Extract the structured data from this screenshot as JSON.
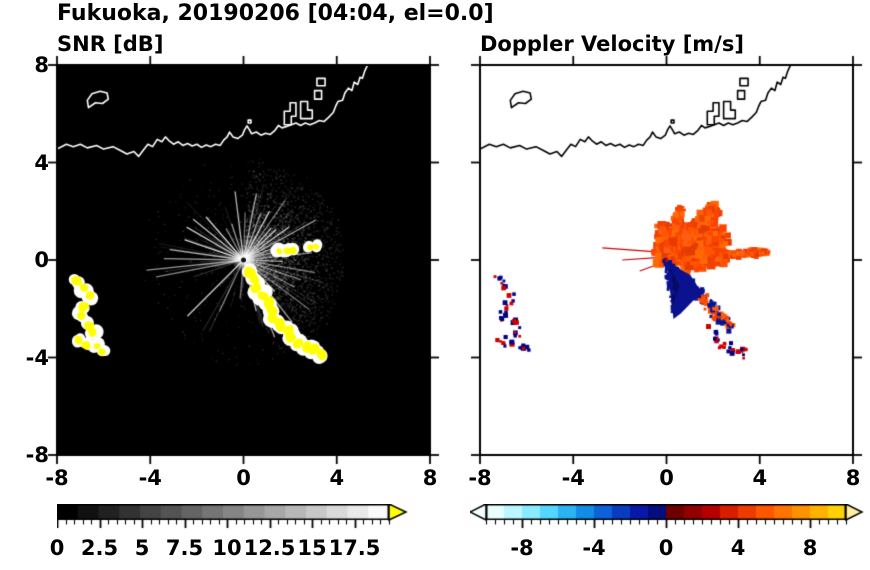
{
  "title": "Fukuoka, 20190206 [04:04, el=0.0]",
  "chart_data": [
    {
      "type": "heatmap",
      "title": "SNR [dB]",
      "xlim": [
        -8,
        8
      ],
      "ylim": [
        -8,
        8
      ],
      "xticks": [
        -8,
        -4,
        0,
        4,
        8
      ],
      "yticks": [
        8,
        4,
        0,
        -4,
        -8
      ],
      "background": "#000000",
      "grid": false,
      "colorbar": {
        "orientation": "horizontal",
        "range": [
          0,
          19.5
        ],
        "ticks": [
          0,
          2.5,
          5,
          7.5,
          10,
          12.5,
          15,
          17.5
        ],
        "colormap": "grayscale",
        "start_color": "#000000",
        "end_color": "#fafafa",
        "over_arrow_color": "#ffff00"
      },
      "features": {
        "radar_center": [
          0,
          0
        ],
        "echo_color": "#c8c8c8",
        "bright_ray_angles": [
          186,
          191,
          179,
          172,
          161,
          150,
          141,
          131,
          119,
          108,
          97,
          88,
          79,
          70,
          62,
          55,
          49,
          43,
          36,
          29,
          22,
          14,
          6,
          -2,
          -10,
          -19,
          -28,
          -37,
          -45,
          -52,
          -60,
          -68,
          -76,
          -95,
          -115,
          -135
        ],
        "blocked_ray_angles": [
          -58,
          -80,
          -100,
          -110,
          210,
          222
        ],
        "clutter_color": "#ffff00",
        "clutter_halo_color": "#ffffff",
        "clutter_chains": [
          {
            "r": 0.18,
            "pts": [
              [
                -7.15,
                -0.85
              ],
              [
                -6.85,
                -1.15
              ],
              [
                -6.6,
                -1.5
              ],
              [
                -6.85,
                -1.9
              ],
              [
                -6.95,
                -2.3
              ],
              [
                -6.6,
                -2.65
              ],
              [
                -6.45,
                -2.95
              ]
            ]
          },
          {
            "r": 0.15,
            "pts": [
              [
                -7.05,
                -3.3
              ],
              [
                -6.75,
                -3.5
              ]
            ]
          },
          {
            "r": 0.13,
            "pts": [
              [
                -6.3,
                -3.55
              ],
              [
                -6.05,
                -3.75
              ]
            ]
          },
          {
            "r": 0.2,
            "pts": [
              [
                0.25,
                -0.5
              ],
              [
                0.5,
                -0.85
              ],
              [
                0.55,
                -1.2
              ],
              [
                0.8,
                -1.45
              ],
              [
                1.05,
                -1.75
              ],
              [
                1.2,
                -2.05
              ],
              [
                1.3,
                -2.4
              ],
              [
                1.6,
                -2.65
              ],
              [
                1.95,
                -2.85
              ],
              [
                2.05,
                -3.2
              ],
              [
                2.35,
                -3.45
              ],
              [
                2.7,
                -3.55
              ],
              [
                3.0,
                -3.65
              ],
              [
                3.3,
                -3.85
              ]
            ]
          },
          {
            "r": 0.14,
            "pts": [
              [
                1.55,
                0.35
              ],
              [
                1.85,
                0.4
              ],
              [
                2.1,
                0.42
              ]
            ]
          },
          {
            "r": 0.12,
            "pts": [
              [
                2.85,
                0.5
              ],
              [
                3.15,
                0.55
              ]
            ]
          }
        ]
      }
    },
    {
      "type": "heatmap",
      "title": "Doppler Velocity [m/s]",
      "xlim": [
        -8,
        8
      ],
      "ylim": [
        -8,
        8
      ],
      "xticks": [
        -8,
        -4,
        0,
        4,
        8
      ],
      "yticks": [
        8,
        4,
        0,
        -4,
        -8
      ],
      "background": "#ffffff",
      "grid": false,
      "colorbar": {
        "orientation": "horizontal",
        "range": [
          -10,
          10
        ],
        "ticks": [
          -8,
          -4,
          0,
          4,
          8
        ],
        "segment_colors": [
          "#eaffff",
          "#bdf6ff",
          "#8ceaff",
          "#55d6ff",
          "#2cb4f2",
          "#128ce4",
          "#0c62d8",
          "#0a3cc2",
          "#0719a6",
          "#040d7c",
          "#6e0000",
          "#920000",
          "#b60000",
          "#d81c00",
          "#ef3a00",
          "#ff5600",
          "#ff7400",
          "#ff9200",
          "#ffb200",
          "#ffd200"
        ],
        "under_arrow_color": "#f2ffff",
        "over_arrow_color": "#fff0a0"
      },
      "features": {
        "plume_center": [
          1.05,
          0.55
        ],
        "plume_colors": [
          "#ff5400",
          "#ff4300",
          "#f04300",
          "#ff6a00",
          "#e63c00",
          "#ff5e14"
        ],
        "streak_color": "#cc0000",
        "streaks": [
          [
            [
              0,
              0.3
            ],
            [
              -2.75,
              0.5
            ]
          ],
          [
            [
              -0.1,
              0.12
            ],
            [
              -1.9,
              0.0
            ]
          ],
          [
            [
              0,
              -0.05
            ],
            [
              -1.15,
              -0.45
            ]
          ]
        ],
        "wedge_color": "#0a128f",
        "wedge_dark": "#060b66",
        "wedge": [
          [
            0.02,
            -0.08
          ],
          [
            0.3,
            -2.42
          ],
          [
            0.62,
            -2.18
          ],
          [
            1.5,
            -1.32
          ],
          [
            1.02,
            -0.62
          ]
        ],
        "wedge_inner": [
          [
            0.05,
            -0.1
          ],
          [
            0.24,
            -2.0
          ],
          [
            0.55,
            -1.05
          ]
        ],
        "fleck_red": "#cc0000",
        "fleck_blue": "#000080"
      }
    }
  ],
  "map": {
    "coastline": [
      [
        -8,
        4.55
      ],
      [
        -7.6,
        4.75
      ],
      [
        -7.3,
        4.65
      ],
      [
        -7.0,
        4.75
      ],
      [
        -6.7,
        4.6
      ],
      [
        -6.3,
        4.7
      ],
      [
        -6.0,
        4.55
      ],
      [
        -5.6,
        4.65
      ],
      [
        -5.3,
        4.5
      ],
      [
        -5.0,
        4.35
      ],
      [
        -4.7,
        4.45
      ],
      [
        -4.5,
        4.25
      ],
      [
        -4.3,
        4.5
      ],
      [
        -4.1,
        4.75
      ],
      [
        -3.9,
        4.65
      ],
      [
        -3.7,
        4.95
      ],
      [
        -3.5,
        4.85
      ],
      [
        -3.35,
        5.05
      ],
      [
        -3.2,
        4.9
      ],
      [
        -3.0,
        4.75
      ],
      [
        -2.8,
        4.85
      ],
      [
        -2.6,
        4.7
      ],
      [
        -2.4,
        4.78
      ],
      [
        -2.2,
        4.68
      ],
      [
        -2.0,
        4.75
      ],
      [
        -1.8,
        4.62
      ],
      [
        -1.6,
        4.72
      ],
      [
        -1.4,
        4.65
      ],
      [
        -1.2,
        4.75
      ],
      [
        -1.0,
        4.7
      ],
      [
        -0.85,
        4.92
      ],
      [
        -0.7,
        5.05
      ],
      [
        -0.6,
        5.25
      ],
      [
        -0.45,
        5.05
      ],
      [
        -0.25,
        4.98
      ],
      [
        -0.05,
        5.12
      ],
      [
        0.05,
        5.35
      ],
      [
        0.15,
        5.5
      ],
      [
        0.25,
        5.35
      ],
      [
        0.35,
        5.18
      ],
      [
        0.55,
        5.25
      ],
      [
        0.75,
        5.12
      ],
      [
        0.95,
        5.2
      ],
      [
        1.15,
        5.15
      ],
      [
        1.35,
        5.32
      ],
      [
        1.5,
        5.52
      ],
      [
        1.65,
        5.42
      ],
      [
        1.85,
        5.48
      ],
      [
        2.05,
        5.55
      ],
      [
        2.25,
        5.62
      ],
      [
        2.45,
        5.52
      ],
      [
        2.65,
        5.62
      ],
      [
        2.85,
        5.55
      ],
      [
        3.05,
        5.62
      ],
      [
        3.25,
        5.72
      ],
      [
        3.45,
        5.68
      ],
      [
        3.65,
        5.85
      ],
      [
        3.85,
        6.05
      ],
      [
        3.95,
        6.3
      ],
      [
        4.05,
        6.5
      ],
      [
        4.25,
        6.55
      ],
      [
        4.35,
        6.85
      ],
      [
        4.5,
        7.05
      ],
      [
        4.65,
        6.95
      ],
      [
        4.75,
        7.3
      ],
      [
        4.9,
        7.2
      ],
      [
        5.0,
        7.5
      ],
      [
        5.1,
        7.45
      ],
      [
        5.2,
        7.75
      ],
      [
        5.3,
        7.95
      ],
      [
        5.35,
        8.1
      ]
    ],
    "island": [
      [
        -6.65,
        6.25
      ],
      [
        -6.35,
        6.45
      ],
      [
        -6.05,
        6.42
      ],
      [
        -5.8,
        6.6
      ],
      [
        -5.85,
        6.85
      ],
      [
        -6.15,
        6.92
      ],
      [
        -6.5,
        6.82
      ],
      [
        -6.7,
        6.55
      ],
      [
        -6.65,
        6.25
      ]
    ],
    "harbor_blocks": [
      [
        [
          1.75,
          5.55
        ],
        [
          1.75,
          6.1
        ],
        [
          2.0,
          6.1
        ],
        [
          2.0,
          6.45
        ],
        [
          2.25,
          6.45
        ],
        [
          2.25,
          5.9
        ],
        [
          2.05,
          5.9
        ],
        [
          2.05,
          5.55
        ]
      ],
      [
        [
          2.45,
          5.8
        ],
        [
          2.45,
          6.5
        ],
        [
          2.75,
          6.5
        ],
        [
          2.75,
          6.15
        ],
        [
          2.95,
          6.15
        ],
        [
          2.95,
          5.8
        ]
      ],
      [
        [
          3.05,
          6.6
        ],
        [
          3.05,
          6.95
        ],
        [
          3.35,
          6.95
        ],
        [
          3.35,
          6.6
        ]
      ],
      [
        [
          3.15,
          7.15
        ],
        [
          3.15,
          7.45
        ],
        [
          3.5,
          7.45
        ],
        [
          3.5,
          7.15
        ]
      ],
      [
        [
          0.2,
          5.62
        ],
        [
          0.32,
          5.62
        ],
        [
          0.32,
          5.74
        ],
        [
          0.2,
          5.74
        ]
      ]
    ]
  }
}
